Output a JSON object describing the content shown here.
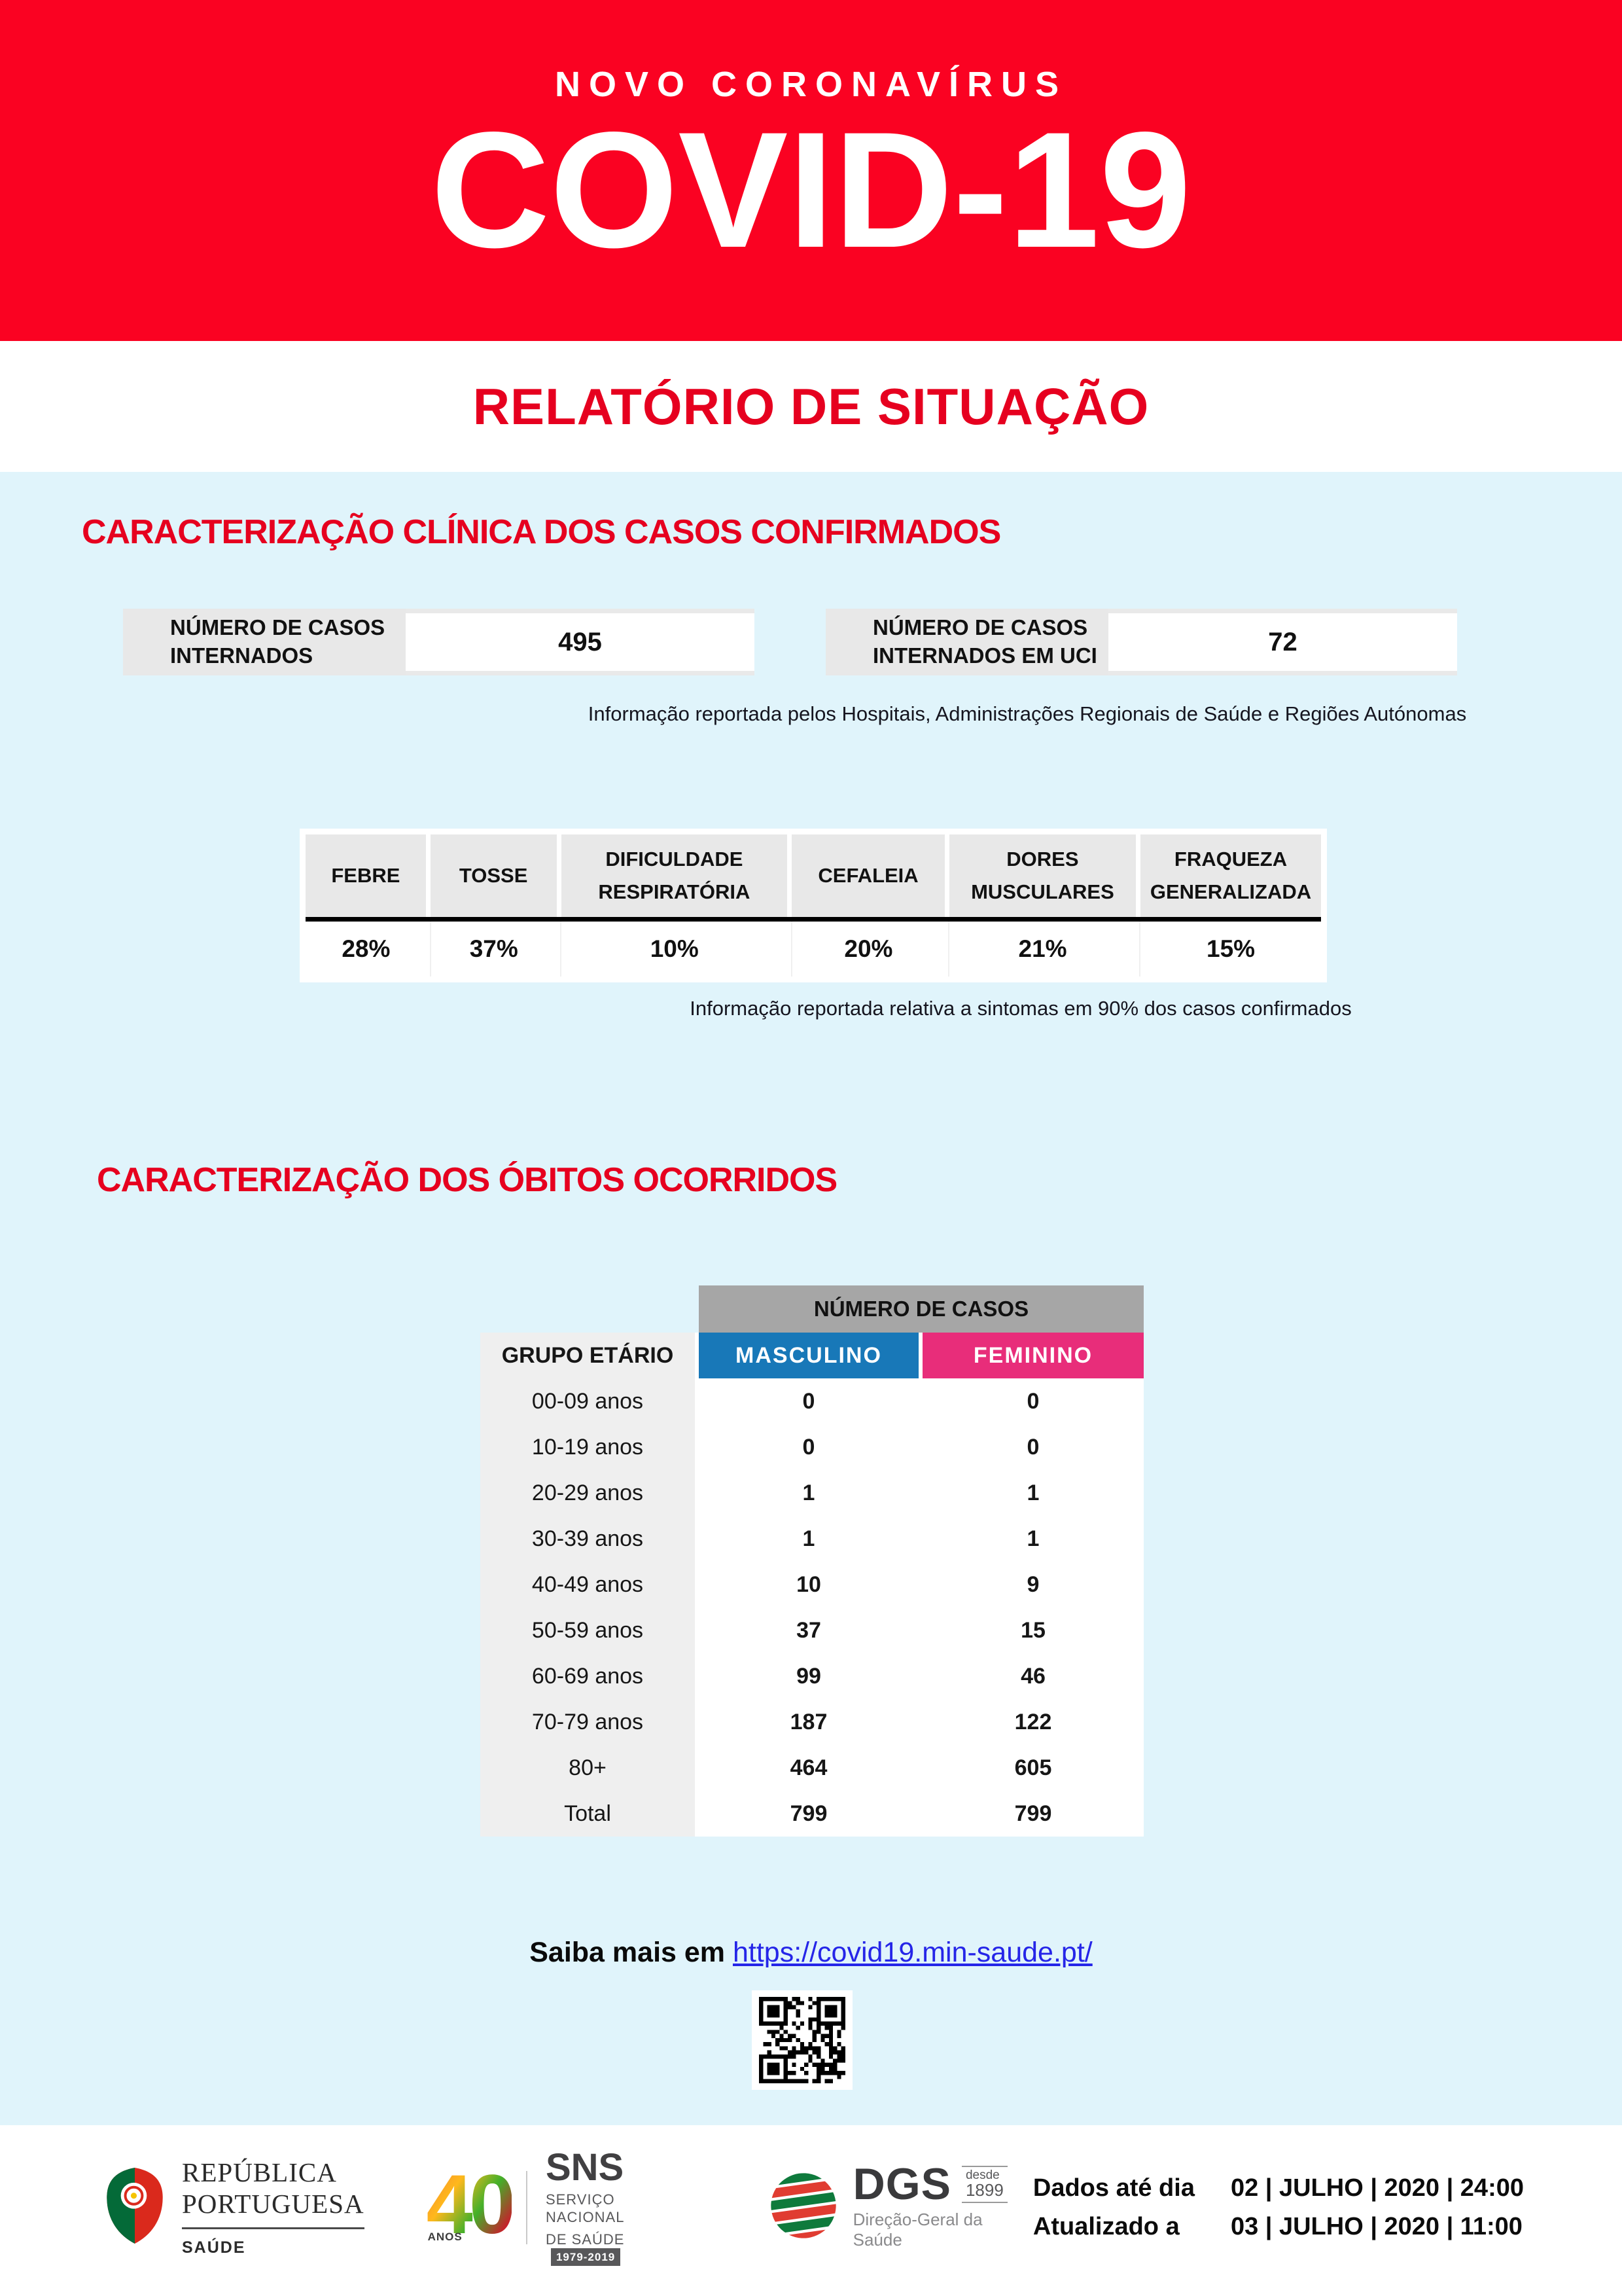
{
  "header": {
    "kicker": "NOVO CORONAVÍRUS",
    "title": "COVID-19"
  },
  "subheader": {
    "title": "RELATÓRIO DE SITUAÇÃO"
  },
  "clinical": {
    "section_title": "CARACTERIZAÇÃO CLÍNICA DOS CASOS CONFIRMADOS",
    "stats": [
      {
        "label": "NÚMERO DE CASOS INTERNADOS",
        "value": "495"
      },
      {
        "label": "NÚMERO DE CASOS INTERNADOS EM UCI",
        "value": "72"
      }
    ],
    "stats_note": "Informação reportada pelos Hospitais, Administrações Regionais de Saúde e Regiões Autónomas",
    "symptoms": {
      "headers": [
        "FEBRE",
        "TOSSE",
        "DIFICULDADE RESPIRATÓRIA",
        "CEFALEIA",
        "DORES MUSCULARES",
        "FRAQUEZA GENERALIZADA"
      ],
      "values": [
        "28%",
        "37%",
        "10%",
        "20%",
        "21%",
        "15%"
      ]
    },
    "symptoms_note": "Informação reportada relativa a sintomas em 90% dos casos confirmados"
  },
  "deaths": {
    "section_title": "CARACTERIZAÇÃO DOS ÓBITOS OCORRIDOS",
    "table": {
      "group_header": "NÚMERO DE CASOS",
      "col_age": "GRUPO ETÁRIO",
      "col_male": "MASCULINO",
      "col_female": "FEMININO",
      "rows": [
        {
          "label": "00-09 anos",
          "male": "0",
          "female": "0"
        },
        {
          "label": "10-19 anos",
          "male": "0",
          "female": "0"
        },
        {
          "label": "20-29 anos",
          "male": "1",
          "female": "1"
        },
        {
          "label": "30-39 anos",
          "male": "1",
          "female": "1"
        },
        {
          "label": "40-49 anos",
          "male": "10",
          "female": "9"
        },
        {
          "label": "50-59 anos",
          "male": "37",
          "female": "15"
        },
        {
          "label": "60-69 anos",
          "male": "99",
          "female": "46"
        },
        {
          "label": "70-79 anos",
          "male": "187",
          "female": "122"
        },
        {
          "label": "80+",
          "male": "464",
          "female": "605"
        },
        {
          "label": "Total",
          "male": "799",
          "female": "799"
        }
      ]
    }
  },
  "more_info": {
    "prefix": "Saiba mais em ",
    "link": "https://covid19.min-saude.pt/"
  },
  "footer": {
    "gov_logo": {
      "line1": "REPÚBLICA",
      "line2": "PORTUGUESA",
      "dept": "SAÚDE"
    },
    "sns_logo": {
      "number": "40",
      "anos": "ANOS",
      "name": "SNS",
      "sub1": "SERVIÇO NACIONAL",
      "sub2": "DE SAÚDE",
      "years": "1979-2019"
    },
    "dgs_logo": {
      "name": "DGS",
      "since_word": "desde",
      "since_year": "1899",
      "subtitle": "Direção-Geral da Saúde"
    },
    "dates": [
      {
        "label": "Dados até dia",
        "value": "02 | JULHO | 2020 | 24:00"
      },
      {
        "label": "Atualizado a",
        "value": "03 | JULHO | 2020 | 11:00"
      }
    ]
  },
  "colors": {
    "banner-red": "#FA0222",
    "heading-red": "#E6001F",
    "light-blue": "#E0F4FB",
    "label-gray": "#E8E8E8",
    "header-gray": "#A6A6A6",
    "male-blue": "#1878B8",
    "female-pink": "#E82D7A",
    "row-gray": "#EFEFEF",
    "link-blue": "#2525E8",
    "flag-green": "#046A38",
    "flag-red": "#DA291C"
  }
}
